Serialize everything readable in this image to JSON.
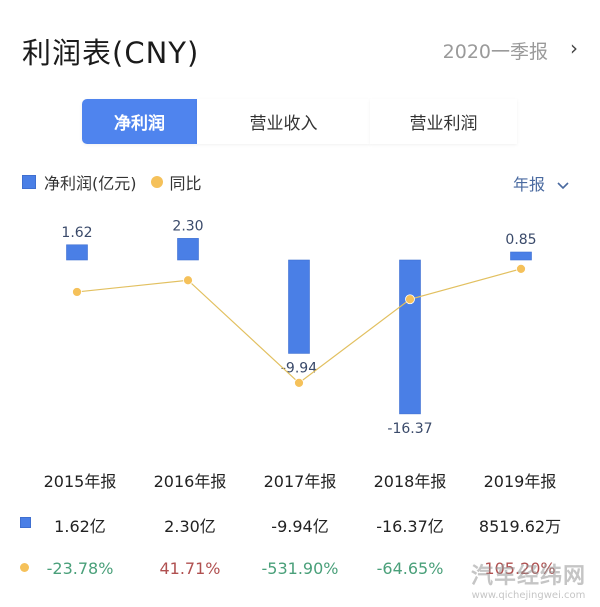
{
  "header": {
    "title": "利润表(CNY)",
    "period_label": "2020一季报",
    "period_arrow": "›"
  },
  "tabs": [
    {
      "label": "净利润",
      "active": true
    },
    {
      "label": "营业收入",
      "active": false
    },
    {
      "label": "营业利润",
      "active": false
    }
  ],
  "legend": {
    "bar_label": "净利润(亿元)",
    "line_label": "同比"
  },
  "range_selector": {
    "label": "年报",
    "icon": "chevron-down-icon"
  },
  "colors": {
    "accent": "#4f84ee",
    "bar": "#4a7fe6",
    "line": "#f5c15a",
    "positive": "#b05050",
    "negative": "#4aa07a"
  },
  "chart_data": {
    "type": "bar",
    "title": "利润表(CNY)",
    "categories": [
      "2015年报",
      "2016年报",
      "2017年报",
      "2018年报",
      "2019年报"
    ],
    "series": [
      {
        "name": "净利润(亿元)",
        "type": "bar",
        "values": [
          1.62,
          2.3,
          -9.94,
          -16.37,
          0.85
        ],
        "labels": [
          "1.62",
          "2.30",
          "-9.94",
          "-16.37",
          "0.85"
        ]
      },
      {
        "name": "同比",
        "type": "line",
        "values": [
          -23.78,
          41.71,
          -531.9,
          -64.65,
          105.2
        ],
        "unit": "%"
      }
    ],
    "xlabel": "",
    "ylabel": "",
    "grid": false,
    "legend_position": "top-left"
  },
  "table": {
    "headers": [
      "2015年报",
      "2016年报",
      "2017年报",
      "2018年报",
      "2019年报"
    ],
    "net_profit": [
      "1.62亿",
      "2.30亿",
      "-9.94亿",
      "-16.37亿",
      "8519.62万"
    ],
    "yoy": [
      "-23.78%",
      "41.71%",
      "-531.90%",
      "-64.65%",
      "105.20%"
    ]
  },
  "watermark": {
    "line1": "汽车经纬网",
    "line2": "www.qichejingwei.com"
  }
}
